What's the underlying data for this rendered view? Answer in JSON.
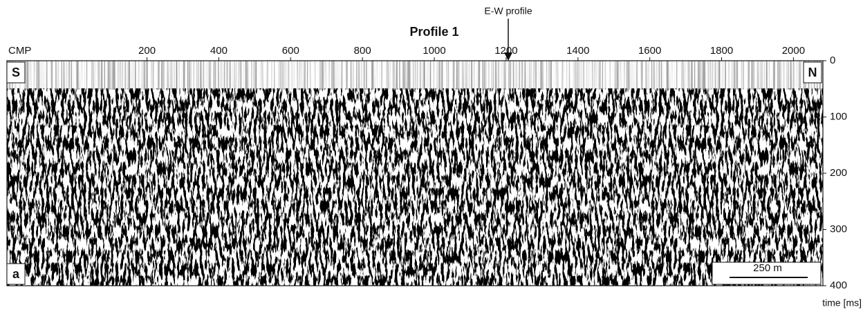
{
  "chart_data": {
    "type": "seismic-section",
    "title": "Profile 1",
    "x_label": "CMP",
    "y_label": "time [ms]",
    "annotation": "E-W profile",
    "left_label": "S",
    "right_label": "N",
    "panel_label": "a",
    "scale_bar": "250 m",
    "xlim": [
      -190,
      2082
    ],
    "xticks": [
      200,
      400,
      600,
      800,
      1000,
      1200,
      1400,
      1600,
      1800,
      2000
    ],
    "ylim": [
      0,
      400
    ],
    "yticks": [
      0,
      100,
      200,
      300,
      400
    ]
  }
}
